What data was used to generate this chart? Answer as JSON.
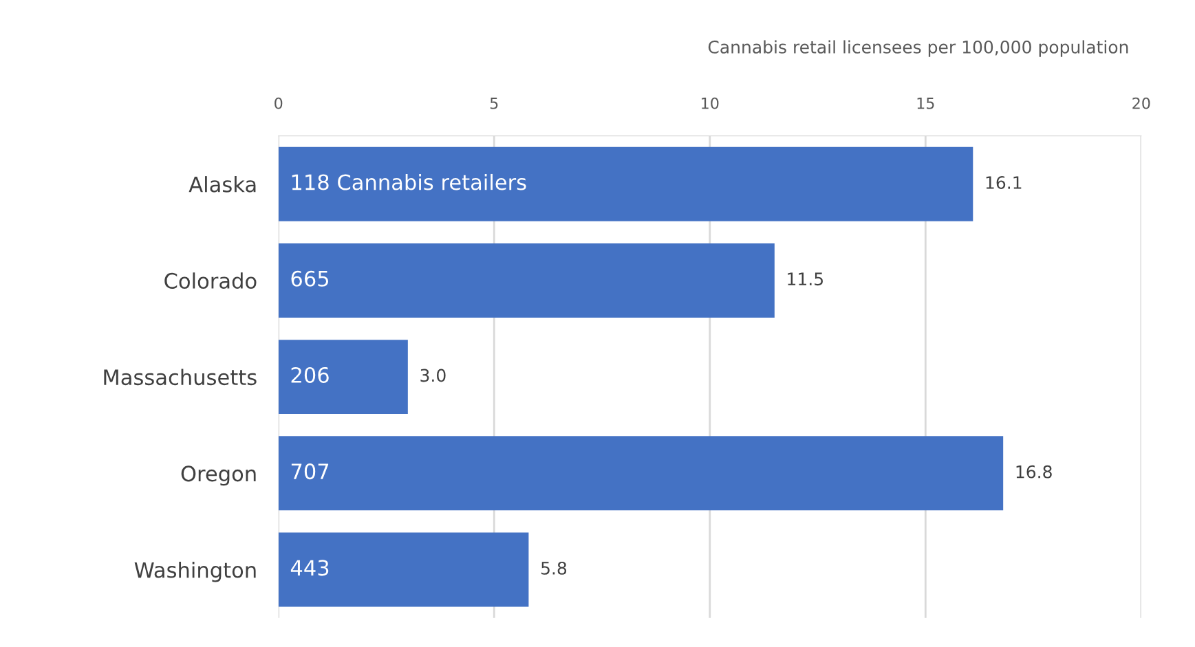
{
  "chart_data": {
    "type": "bar",
    "orientation": "horizontal",
    "xlabel": "Cannabis retail licensees per 100,000 population",
    "categories": [
      "Alaska",
      "Colorado",
      "Massachusetts",
      "Oregon",
      "Washington"
    ],
    "values": [
      16.1,
      11.5,
      3.0,
      16.8,
      5.8
    ],
    "value_labels": [
      "16.1",
      "11.5",
      "3.0",
      "16.8",
      "5.8"
    ],
    "color": "#4472c4",
    "xlim": [
      0,
      20
    ],
    "xticks": [
      0,
      5,
      10,
      15,
      20
    ],
    "grid": "x",
    "annotations": [
      "118 Cannabis retailers",
      "665",
      "206",
      "707",
      "443"
    ]
  }
}
